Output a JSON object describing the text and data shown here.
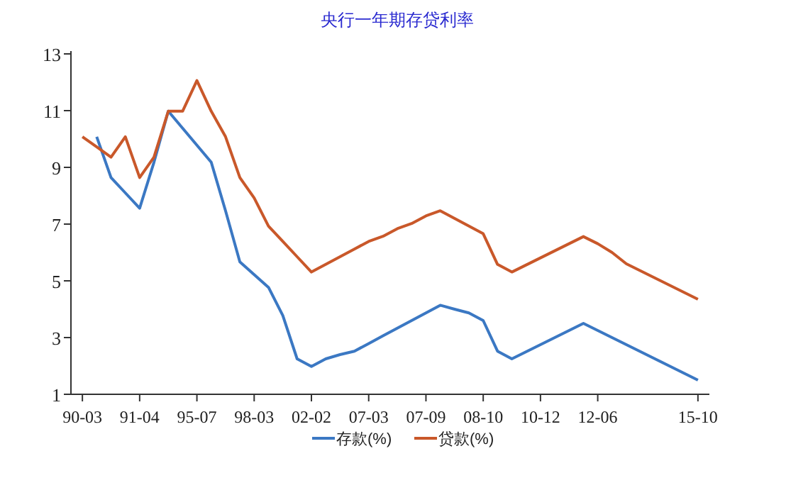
{
  "chart_data": {
    "type": "line",
    "title": "央行一年期存贷利率",
    "categories": [
      "90-03",
      null,
      null,
      null,
      "91-04",
      null,
      null,
      null,
      "95-07",
      null,
      null,
      null,
      "98-03",
      null,
      null,
      null,
      "02-02",
      null,
      null,
      null,
      "07-03",
      null,
      null,
      null,
      "07-09",
      null,
      null,
      null,
      "08-10",
      null,
      null,
      null,
      "10-12",
      null,
      null,
      null,
      "12-06",
      null,
      null,
      null,
      null,
      null,
      null,
      "15-10"
    ],
    "series": [
      {
        "name": "存款(%)",
        "color": "#3b78c3",
        "values": [
          null,
          10.08,
          8.64,
          8.1,
          7.56,
          9.18,
          10.98,
          10.38,
          9.78,
          9.18,
          7.47,
          5.67,
          5.22,
          4.77,
          3.78,
          2.25,
          1.98,
          2.25,
          2.4,
          2.52,
          2.79,
          3.06,
          3.33,
          3.6,
          3.87,
          4.14,
          4.0,
          3.87,
          3.6,
          2.52,
          2.25,
          2.5,
          2.75,
          3.0,
          3.25,
          3.5,
          3.25,
          3.0,
          2.75,
          2.5,
          2.25,
          2.0,
          1.75,
          1.5
        ]
      },
      {
        "name": "贷款(%)",
        "color": "#c9582a",
        "values": [
          10.08,
          9.72,
          9.36,
          10.08,
          8.64,
          9.36,
          10.98,
          10.98,
          12.06,
          10.98,
          10.08,
          8.64,
          7.92,
          6.93,
          6.39,
          5.85,
          5.31,
          5.58,
          5.85,
          6.12,
          6.39,
          6.57,
          6.84,
          7.02,
          7.29,
          7.47,
          7.2,
          6.93,
          6.66,
          5.58,
          5.31,
          5.56,
          5.81,
          6.06,
          6.31,
          6.56,
          6.31,
          6.0,
          5.6,
          5.35,
          5.1,
          4.85,
          4.6,
          4.35
        ]
      }
    ],
    "ylim": [
      1,
      13
    ],
    "yticks": [
      1,
      3,
      5,
      7,
      9,
      11,
      13
    ],
    "grid": false,
    "legend": "bottom",
    "marker": "none",
    "line_style": "solid"
  }
}
